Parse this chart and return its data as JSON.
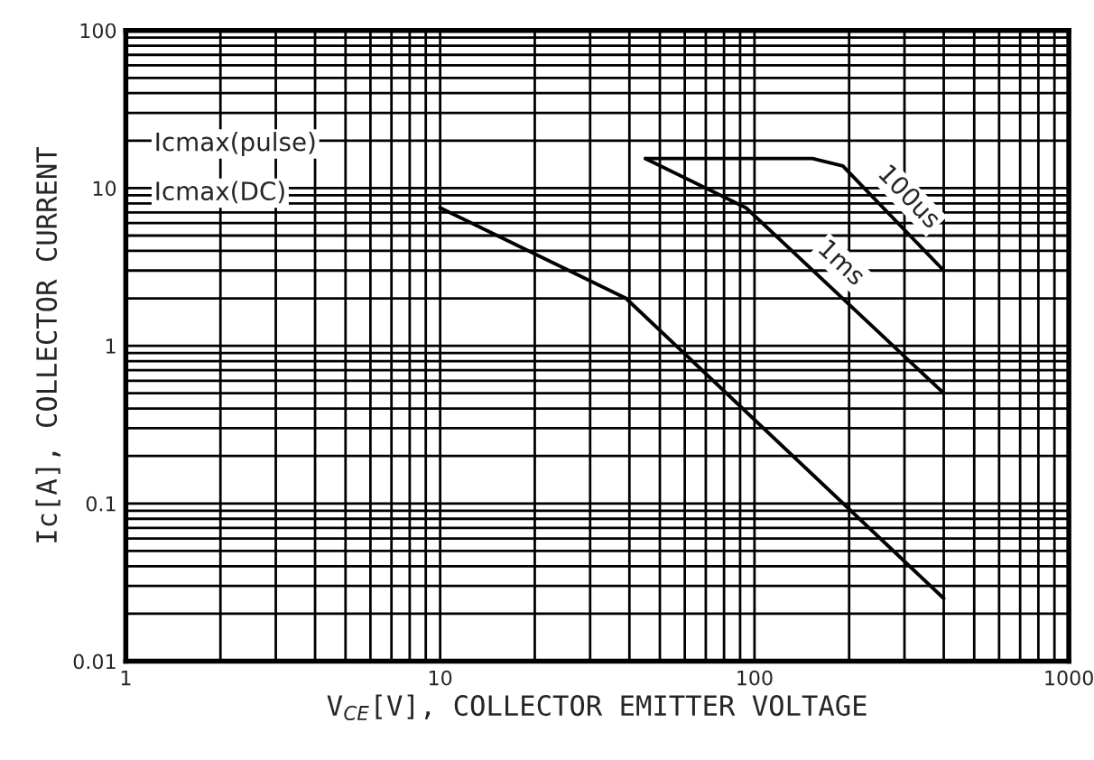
{
  "chart_data": {
    "type": "line",
    "xlabel": "V$_{CE}$[V], COLLECTOR EMITTER VOLTAGE",
    "ylabel": "Ic[A], COLLECTOR CURRENT",
    "log": "xy",
    "xlim": [
      1,
      1000
    ],
    "ylim": [
      0.01,
      100
    ],
    "xticks": [
      1,
      10,
      100,
      1000
    ],
    "yticks": [
      0.01,
      0.1,
      1,
      10,
      100
    ],
    "grid": true,
    "marker": "none",
    "line_style": "solid",
    "series": [
      {
        "color": "#000000",
        "x": [
          10,
          39,
          400
        ],
        "values": [
          7.5,
          2.0,
          0.025
        ]
      },
      {
        "name": "1ms",
        "color": "#000000",
        "x": [
          45,
          94,
          400
        ],
        "values": [
          15.4,
          7.5,
          0.5
        ]
      },
      {
        "name": "100us",
        "color": "#000000",
        "x": [
          45,
          153,
          191,
          400
        ],
        "values": [
          15.4,
          15.4,
          13.8,
          3.0
        ]
      }
    ],
    "annotations": [
      "Icmax(pulse)",
      "Icmax(DC)"
    ]
  }
}
